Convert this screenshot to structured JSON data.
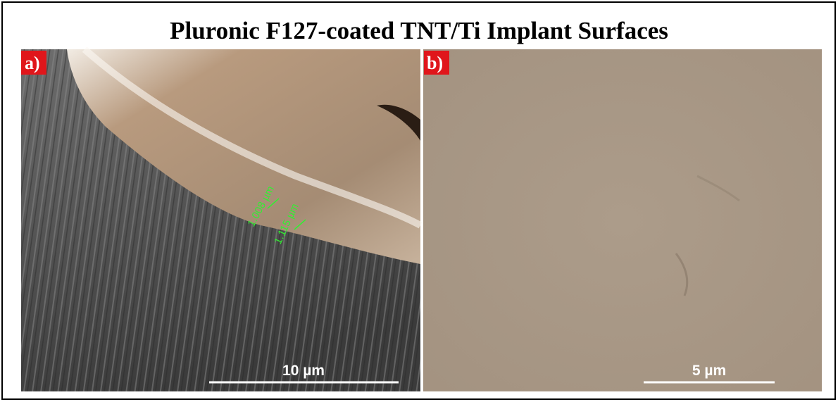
{
  "title": "Pluronic F127-coated TNT/Ti Implant Surfaces",
  "panels": [
    {
      "label": "a)",
      "scale_bar": "10 µm",
      "measurements": [
        "1.008 µm",
        "1.115 µm"
      ]
    },
    {
      "label": "b)",
      "scale_bar": "5 µm"
    }
  ]
}
